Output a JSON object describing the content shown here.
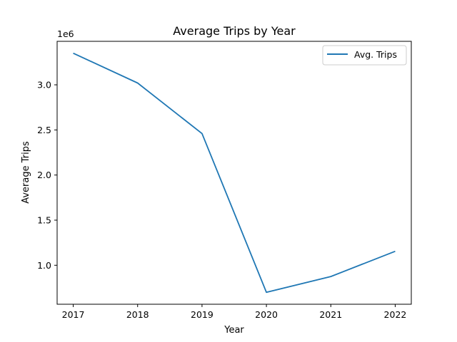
{
  "chart_data": {
    "type": "line",
    "title": "Average Trips by Year",
    "xlabel": "Year",
    "ylabel": "Average Trips",
    "y_offset_text": "1e6",
    "x": [
      2017,
      2018,
      2019,
      2020,
      2021,
      2022
    ],
    "x_tick_labels": [
      "2017",
      "2018",
      "2019",
      "2020",
      "2021",
      "2022"
    ],
    "series": [
      {
        "name": "Avg. Trips",
        "color": "#1f77b4",
        "values": [
          3350000,
          3020000,
          2460000,
          700000,
          875000,
          1155000
        ]
      }
    ],
    "y_ticks": [
      1.0,
      1.5,
      2.0,
      2.5,
      3.0
    ],
    "y_tick_labels": [
      "1.0",
      "1.5",
      "2.0",
      "2.5",
      "3.0"
    ],
    "y_tick_multiplier": 1000000,
    "xlim": [
      2016.75,
      2022.25
    ],
    "ylim": [
      568000,
      3482000
    ],
    "grid": false,
    "legend_position": "upper right"
  }
}
